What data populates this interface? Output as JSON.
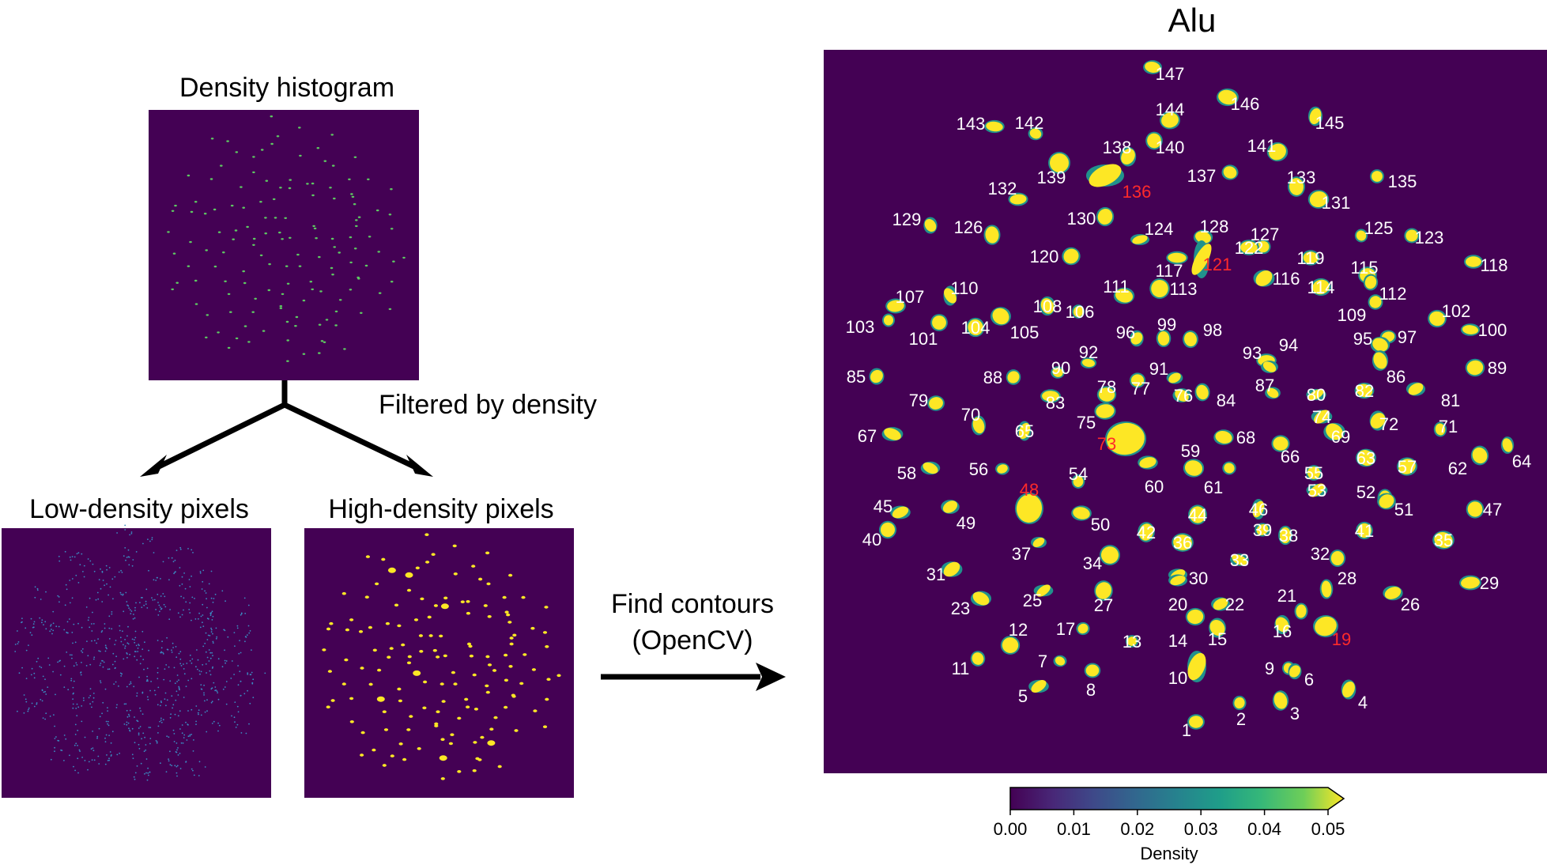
{
  "panels": {
    "histogram_title": "Density histogram",
    "filter_label": "Filtered by density",
    "low_title": "Low-density pixels",
    "high_title": "High-density pixels",
    "contour_label_line1": "Find contours",
    "contour_label_line2": "(OpenCV)",
    "map_title": "Alu"
  },
  "colorbar": {
    "label": "Density",
    "ticks": [
      "0.00",
      "0.01",
      "0.02",
      "0.03",
      "0.04",
      "0.05"
    ],
    "colormap": "viridis"
  },
  "colors": {
    "background": "#440154",
    "highlight": "#fde725",
    "mid": "#21918c",
    "label_normal": "#ffffff",
    "label_highlight": "#ff2a2a"
  },
  "regions": [
    {
      "id": "147",
      "hl": false
    },
    {
      "id": "146",
      "hl": false
    },
    {
      "id": "145",
      "hl": false
    },
    {
      "id": "144",
      "hl": false
    },
    {
      "id": "143",
      "hl": false
    },
    {
      "id": "142",
      "hl": false
    },
    {
      "id": "141",
      "hl": false
    },
    {
      "id": "140",
      "hl": false
    },
    {
      "id": "139",
      "hl": false
    },
    {
      "id": "138",
      "hl": false
    },
    {
      "id": "137",
      "hl": false
    },
    {
      "id": "136",
      "hl": true
    },
    {
      "id": "135",
      "hl": false
    },
    {
      "id": "133",
      "hl": false
    },
    {
      "id": "132",
      "hl": false
    },
    {
      "id": "131",
      "hl": false
    },
    {
      "id": "130",
      "hl": false
    },
    {
      "id": "129",
      "hl": false
    },
    {
      "id": "128",
      "hl": false
    },
    {
      "id": "127",
      "hl": false
    },
    {
      "id": "126",
      "hl": false
    },
    {
      "id": "125",
      "hl": false
    },
    {
      "id": "124",
      "hl": false
    },
    {
      "id": "123",
      "hl": false
    },
    {
      "id": "122",
      "hl": false
    },
    {
      "id": "121",
      "hl": true
    },
    {
      "id": "120",
      "hl": false
    },
    {
      "id": "119",
      "hl": false
    },
    {
      "id": "118",
      "hl": false
    },
    {
      "id": "117",
      "hl": false
    },
    {
      "id": "116",
      "hl": false
    },
    {
      "id": "115",
      "hl": false
    },
    {
      "id": "114",
      "hl": false
    },
    {
      "id": "113",
      "hl": false
    },
    {
      "id": "112",
      "hl": false
    },
    {
      "id": "111",
      "hl": false
    },
    {
      "id": "110",
      "hl": false
    },
    {
      "id": "109",
      "hl": false
    },
    {
      "id": "108",
      "hl": false
    },
    {
      "id": "107",
      "hl": false
    },
    {
      "id": "106",
      "hl": false
    },
    {
      "id": "105",
      "hl": false
    },
    {
      "id": "104",
      "hl": false
    },
    {
      "id": "103",
      "hl": false
    },
    {
      "id": "102",
      "hl": false
    },
    {
      "id": "101",
      "hl": false
    },
    {
      "id": "100",
      "hl": false
    },
    {
      "id": "99",
      "hl": false
    },
    {
      "id": "98",
      "hl": false
    },
    {
      "id": "97",
      "hl": false
    },
    {
      "id": "96",
      "hl": false
    },
    {
      "id": "95",
      "hl": false
    },
    {
      "id": "94",
      "hl": false
    },
    {
      "id": "93",
      "hl": false
    },
    {
      "id": "92",
      "hl": false
    },
    {
      "id": "91",
      "hl": false
    },
    {
      "id": "90",
      "hl": false
    },
    {
      "id": "89",
      "hl": false
    },
    {
      "id": "88",
      "hl": false
    },
    {
      "id": "87",
      "hl": false
    },
    {
      "id": "86",
      "hl": false
    },
    {
      "id": "85",
      "hl": false
    },
    {
      "id": "84",
      "hl": false
    },
    {
      "id": "83",
      "hl": false
    },
    {
      "id": "82",
      "hl": false
    },
    {
      "id": "81",
      "hl": false
    },
    {
      "id": "80",
      "hl": false
    },
    {
      "id": "79",
      "hl": false
    },
    {
      "id": "78",
      "hl": false
    },
    {
      "id": "77",
      "hl": false
    },
    {
      "id": "76",
      "hl": false
    },
    {
      "id": "75",
      "hl": false
    },
    {
      "id": "74",
      "hl": false
    },
    {
      "id": "73",
      "hl": true
    },
    {
      "id": "72",
      "hl": false
    },
    {
      "id": "71",
      "hl": false
    },
    {
      "id": "70",
      "hl": false
    },
    {
      "id": "69",
      "hl": false
    },
    {
      "id": "68",
      "hl": false
    },
    {
      "id": "67",
      "hl": false
    },
    {
      "id": "66",
      "hl": false
    },
    {
      "id": "65",
      "hl": false
    },
    {
      "id": "64",
      "hl": false
    },
    {
      "id": "63",
      "hl": false
    },
    {
      "id": "62",
      "hl": false
    },
    {
      "id": "61",
      "hl": false
    },
    {
      "id": "60",
      "hl": false
    },
    {
      "id": "59",
      "hl": false
    },
    {
      "id": "58",
      "hl": false
    },
    {
      "id": "57",
      "hl": false
    },
    {
      "id": "56",
      "hl": false
    },
    {
      "id": "55",
      "hl": false
    },
    {
      "id": "54",
      "hl": false
    },
    {
      "id": "53",
      "hl": false
    },
    {
      "id": "52",
      "hl": false
    },
    {
      "id": "51",
      "hl": false
    },
    {
      "id": "50",
      "hl": false
    },
    {
      "id": "49",
      "hl": false
    },
    {
      "id": "48",
      "hl": true
    },
    {
      "id": "47",
      "hl": false
    },
    {
      "id": "46",
      "hl": false
    },
    {
      "id": "45",
      "hl": false
    },
    {
      "id": "44",
      "hl": false
    },
    {
      "id": "42",
      "hl": false
    },
    {
      "id": "41",
      "hl": false
    },
    {
      "id": "40",
      "hl": false
    },
    {
      "id": "39",
      "hl": false
    },
    {
      "id": "38",
      "hl": false
    },
    {
      "id": "37",
      "hl": false
    },
    {
      "id": "36",
      "hl": false
    },
    {
      "id": "35",
      "hl": false
    },
    {
      "id": "34",
      "hl": false
    },
    {
      "id": "33",
      "hl": false
    },
    {
      "id": "32",
      "hl": false
    },
    {
      "id": "31",
      "hl": false
    },
    {
      "id": "30",
      "hl": false
    },
    {
      "id": "29",
      "hl": false
    },
    {
      "id": "28",
      "hl": false
    },
    {
      "id": "27",
      "hl": false
    },
    {
      "id": "26",
      "hl": false
    },
    {
      "id": "25",
      "hl": false
    },
    {
      "id": "23",
      "hl": false
    },
    {
      "id": "22",
      "hl": false
    },
    {
      "id": "21",
      "hl": false
    },
    {
      "id": "20",
      "hl": false
    },
    {
      "id": "19",
      "hl": true
    },
    {
      "id": "17",
      "hl": false
    },
    {
      "id": "16",
      "hl": false
    },
    {
      "id": "15",
      "hl": false
    },
    {
      "id": "14",
      "hl": false
    },
    {
      "id": "13",
      "hl": false
    },
    {
      "id": "12",
      "hl": false
    },
    {
      "id": "11",
      "hl": false
    },
    {
      "id": "10",
      "hl": false
    },
    {
      "id": "9",
      "hl": false
    },
    {
      "id": "8",
      "hl": false
    },
    {
      "id": "7",
      "hl": false
    },
    {
      "id": "6",
      "hl": false
    },
    {
      "id": "5",
      "hl": false
    },
    {
      "id": "4",
      "hl": false
    },
    {
      "id": "3",
      "hl": false
    },
    {
      "id": "2",
      "hl": false
    },
    {
      "id": "1",
      "hl": false
    }
  ]
}
